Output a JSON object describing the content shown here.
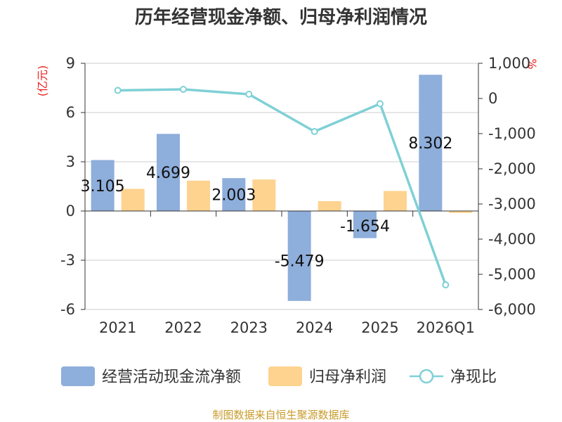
{
  "chart_data": {
    "type": "bar",
    "title": "历年经营现金净额、归母净利润情况",
    "categories": [
      "2021",
      "2022",
      "2023",
      "2024",
      "2025",
      "2026Q1"
    ],
    "left_axis": {
      "unit": "(亿元)",
      "ylim": [
        -6,
        9
      ],
      "ticks": [
        9,
        6,
        3,
        0,
        -3,
        -6
      ]
    },
    "right_axis": {
      "unit": "%",
      "ylim": [
        -6000,
        1000
      ],
      "ticks": [
        1000,
        0,
        -1000,
        -2000,
        -3000,
        -4000,
        -5000,
        -6000
      ],
      "tick_labels": [
        "1,000",
        "0",
        "-1,000",
        "-2,000",
        "-3,000",
        "-4,000",
        "-5,000",
        "-6,000"
      ]
    },
    "series": [
      {
        "name": "经营活动现金流净额",
        "type": "bar",
        "axis": "left",
        "color": "#8eaedb",
        "values": [
          3.105,
          4.699,
          2.003,
          -5.479,
          -1.654,
          8.302
        ],
        "labels": [
          "3.105",
          "4.699",
          "2.003",
          "-5.479",
          "-1.654",
          "8.302"
        ]
      },
      {
        "name": "归母净利润",
        "type": "bar",
        "axis": "left",
        "color": "#fdd38f",
        "values": [
          1.35,
          1.85,
          1.92,
          0.6,
          1.22,
          -0.12
        ]
      },
      {
        "name": "净现比",
        "type": "line",
        "axis": "right",
        "color": "#7fd0d6",
        "values": [
          230,
          260,
          120,
          -940,
          -150,
          -5300
        ]
      }
    ],
    "legend_position": "bottom",
    "grid": true,
    "source": "制图数据来自恒生聚源数据库"
  }
}
